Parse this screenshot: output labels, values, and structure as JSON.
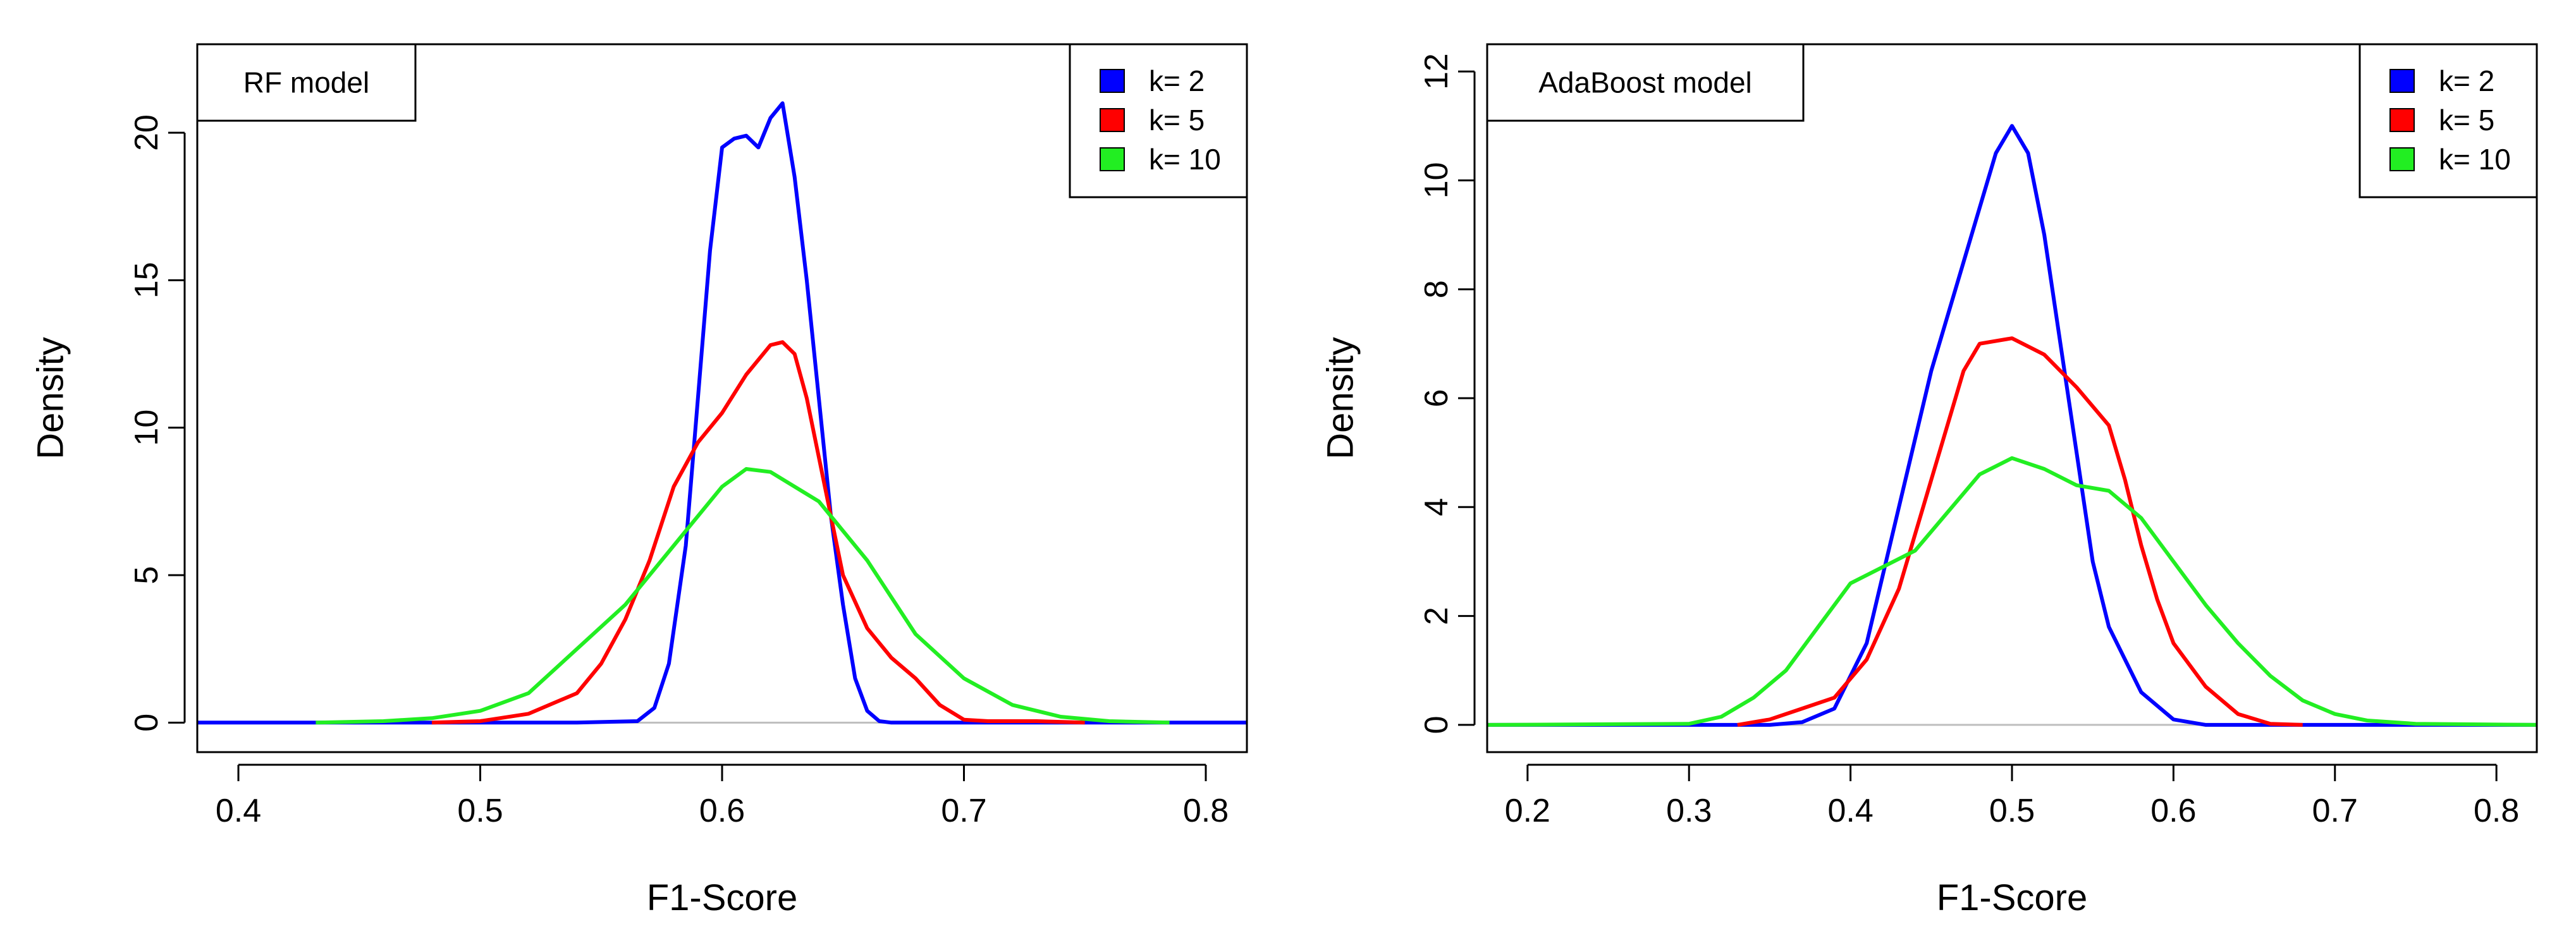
{
  "colors": {
    "k2": "#0000ff",
    "k5": "#ff0000",
    "k10": "#22ee22",
    "axis": "#000000",
    "baseline": "#bebebe"
  },
  "chart_data": [
    {
      "type": "line",
      "title": "RF model",
      "xlabel": "F1-Score",
      "ylabel": "Density",
      "xlim": [
        0.383,
        0.817
      ],
      "ylim": [
        -1,
        23
      ],
      "xticks": [
        0.4,
        0.5,
        0.6,
        0.7,
        0.8
      ],
      "xtick_labels": [
        "0.4",
        "0.5",
        "0.6",
        "0.7",
        "0.8"
      ],
      "yticks": [
        0,
        5,
        10,
        15,
        20
      ],
      "ytick_labels": [
        "0",
        "5",
        "10",
        "15",
        "20"
      ],
      "legend": {
        "position": "top-right",
        "entries": [
          "k= 2",
          "k= 5",
          "k= 10"
        ]
      },
      "series": [
        {
          "name": "k= 2",
          "color": "#0000ff",
          "x": [
            0.383,
            0.54,
            0.565,
            0.572,
            0.578,
            0.585,
            0.59,
            0.595,
            0.6,
            0.605,
            0.61,
            0.615,
            0.62,
            0.625,
            0.63,
            0.635,
            0.64,
            0.645,
            0.65,
            0.655,
            0.66,
            0.665,
            0.67,
            0.7,
            0.817
          ],
          "y": [
            0,
            0,
            0.05,
            0.5,
            2,
            6,
            11,
            16,
            19.5,
            19.8,
            19.9,
            19.5,
            20.5,
            21,
            18.5,
            15,
            11,
            7,
            4,
            1.5,
            0.4,
            0.05,
            0,
            0,
            0
          ]
        },
        {
          "name": "k= 5",
          "color": "#ff0000",
          "x": [
            0.48,
            0.5,
            0.52,
            0.54,
            0.55,
            0.56,
            0.57,
            0.58,
            0.59,
            0.6,
            0.61,
            0.62,
            0.625,
            0.63,
            0.635,
            0.64,
            0.645,
            0.65,
            0.66,
            0.67,
            0.68,
            0.69,
            0.7,
            0.71,
            0.73,
            0.75
          ],
          "y": [
            0,
            0.05,
            0.3,
            1,
            2,
            3.5,
            5.5,
            8,
            9.5,
            10.5,
            11.8,
            12.8,
            12.9,
            12.5,
            11,
            9,
            7,
            5,
            3.2,
            2.2,
            1.5,
            0.6,
            0.1,
            0.05,
            0.05,
            0
          ]
        },
        {
          "name": "k= 10",
          "color": "#22ee22",
          "x": [
            0.432,
            0.46,
            0.48,
            0.5,
            0.52,
            0.54,
            0.56,
            0.58,
            0.6,
            0.61,
            0.62,
            0.64,
            0.66,
            0.68,
            0.7,
            0.72,
            0.74,
            0.76,
            0.785
          ],
          "y": [
            0,
            0.05,
            0.15,
            0.4,
            1,
            2.5,
            4,
            6,
            8,
            8.6,
            8.5,
            7.5,
            5.5,
            3,
            1.5,
            0.6,
            0.2,
            0.05,
            0
          ]
        }
      ]
    },
    {
      "type": "line",
      "title": "AdaBoost model",
      "xlabel": "F1-Score",
      "ylabel": "Density",
      "xlim": [
        0.175,
        0.825
      ],
      "ylim": [
        -0.5,
        12.5
      ],
      "xticks": [
        0.2,
        0.3,
        0.4,
        0.5,
        0.6,
        0.7,
        0.8
      ],
      "xtick_labels": [
        "0.2",
        "0.3",
        "0.4",
        "0.5",
        "0.6",
        "0.7",
        "0.8"
      ],
      "yticks": [
        0,
        2,
        4,
        6,
        8,
        10,
        12
      ],
      "ytick_labels": [
        "0",
        "2",
        "4",
        "6",
        "8",
        "10",
        "12"
      ],
      "legend": {
        "position": "top-right",
        "entries": [
          "k= 2",
          "k= 5",
          "k= 10"
        ]
      },
      "series": [
        {
          "name": "k= 2",
          "color": "#0000ff",
          "x": [
            0.175,
            0.35,
            0.37,
            0.39,
            0.41,
            0.43,
            0.45,
            0.47,
            0.48,
            0.49,
            0.5,
            0.51,
            0.52,
            0.53,
            0.54,
            0.55,
            0.56,
            0.58,
            0.6,
            0.62,
            0.825
          ],
          "y": [
            0,
            0,
            0.05,
            0.3,
            1.5,
            4,
            6.5,
            8.5,
            9.5,
            10.5,
            11,
            10.5,
            9,
            7,
            5,
            3,
            1.8,
            0.6,
            0.1,
            0,
            0
          ]
        },
        {
          "name": "k= 5",
          "color": "#ff0000",
          "x": [
            0.33,
            0.35,
            0.37,
            0.39,
            0.41,
            0.43,
            0.45,
            0.47,
            0.48,
            0.5,
            0.52,
            0.54,
            0.56,
            0.57,
            0.58,
            0.59,
            0.6,
            0.62,
            0.64,
            0.66,
            0.68
          ],
          "y": [
            0,
            0.1,
            0.3,
            0.5,
            1.2,
            2.5,
            4.5,
            6.5,
            7,
            7.1,
            6.8,
            6.2,
            5.5,
            4.5,
            3.3,
            2.3,
            1.5,
            0.7,
            0.2,
            0.02,
            0
          ]
        },
        {
          "name": "k= 10",
          "color": "#22ee22",
          "x": [
            0.175,
            0.3,
            0.32,
            0.34,
            0.36,
            0.38,
            0.4,
            0.42,
            0.44,
            0.46,
            0.48,
            0.5,
            0.52,
            0.54,
            0.56,
            0.58,
            0.6,
            0.62,
            0.64,
            0.66,
            0.68,
            0.7,
            0.72,
            0.75,
            0.825
          ],
          "y": [
            0,
            0.02,
            0.15,
            0.5,
            1,
            1.8,
            2.6,
            2.9,
            3.2,
            3.9,
            4.6,
            4.9,
            4.7,
            4.4,
            4.3,
            3.8,
            3,
            2.2,
            1.5,
            0.9,
            0.45,
            0.2,
            0.08,
            0.02,
            0
          ]
        }
      ]
    }
  ]
}
